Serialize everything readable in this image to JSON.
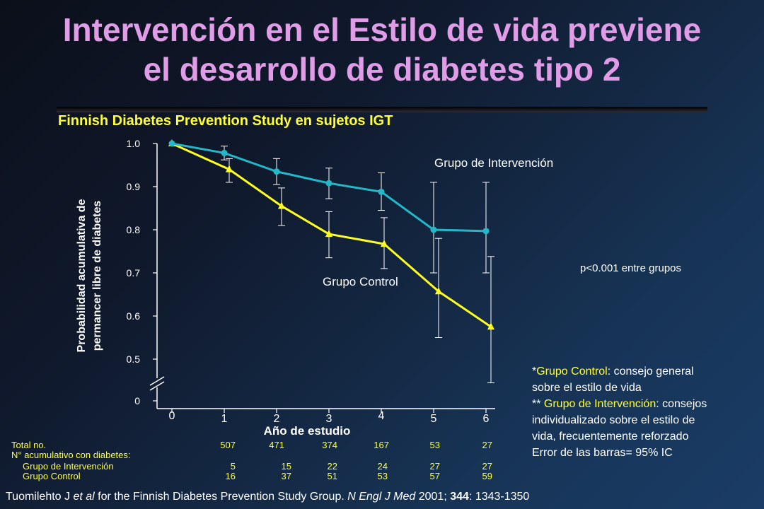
{
  "title_line1": "Intervención en el Estilo de vida previene",
  "title_line2": "el desarrollo de diabetes tipo 2",
  "subtitle": "Finnish Diabetes Prevention Study en sujetos IGT",
  "colors": {
    "title": "#e09ce6",
    "intervention": "#22b8c8",
    "control": "#ffff22",
    "highlight": "#ffff33"
  },
  "chart_data": {
    "type": "line",
    "xlabel": "Año de estudio",
    "ylabel_line1": "Probabilidad acumulativa de",
    "ylabel_line2": "permancer libre de diabetes",
    "x_ticks": [
      "0",
      "1",
      "2",
      "3",
      "4",
      "5",
      "6"
    ],
    "y_ticks": [
      "1.0",
      "0.9",
      "0.8",
      "0.7",
      "0.6",
      "0.5"
    ],
    "y_zero_label": "0",
    "ylim": [
      0.5,
      1.0
    ],
    "axis_break": true,
    "series": [
      {
        "name": "Grupo de Intervención",
        "marker": "circle",
        "x": [
          0,
          1,
          2,
          3,
          4,
          5,
          6
        ],
        "values": [
          1.0,
          0.978,
          0.935,
          0.908,
          0.888,
          0.8,
          0.797
        ],
        "ci_low": [
          null,
          0.962,
          0.905,
          0.872,
          0.845,
          0.7,
          0.7
        ],
        "ci_high": [
          null,
          0.994,
          0.965,
          0.943,
          0.932,
          0.91,
          0.91
        ]
      },
      {
        "name": "Grupo Control",
        "marker": "triangle",
        "x": [
          0,
          1,
          2,
          3,
          4,
          5,
          6
        ],
        "values": [
          1.0,
          0.94,
          0.855,
          0.79,
          0.767,
          0.657,
          0.575
        ],
        "ci_low": [
          null,
          0.91,
          0.81,
          0.735,
          0.71,
          0.55,
          0.445
        ],
        "ci_high": [
          null,
          0.965,
          0.897,
          0.842,
          0.828,
          0.78,
          0.738
        ]
      }
    ],
    "annotations": {
      "intervention_label": "Grupo de Intervención",
      "control_label": "Grupo Control"
    }
  },
  "p_value": "p<0.001 entre grupos",
  "note": {
    "l1_pre": "*",
    "l1_hl": "Grupo Control",
    "l1_post": ": consejo general",
    "l2": "sobre el estilo de vida",
    "l3_pre": "** ",
    "l3_hl": "Grupo de Intervención",
    "l3_post": ": consejos",
    "l4": "individualizado sobre el estilo de",
    "l5": "vida, frecuentemente reforzado",
    "l6": "Error de las barras= 95% IC"
  },
  "table": {
    "total_label": "Total no.",
    "total_values": [
      "507",
      "471",
      "374",
      "167",
      "53",
      "27"
    ],
    "cum_label": "N° acumulativo con diabetes:",
    "int_label": "Grupo de Intervención",
    "int_values": [
      "5",
      "15",
      "22",
      "24",
      "27",
      "27"
    ],
    "ctrl_label": "Grupo Control",
    "ctrl_values": [
      "16",
      "37",
      "51",
      "53",
      "57",
      "59"
    ]
  },
  "citation": {
    "pre": "Tuomilehto J ",
    "etal": "et al",
    "mid": " for the Finnish Diabetes Prevention Study Group. ",
    "journal": "N Engl J Med",
    "year": " 2001; ",
    "vol": "344",
    "pages": ": 1343-1350"
  }
}
